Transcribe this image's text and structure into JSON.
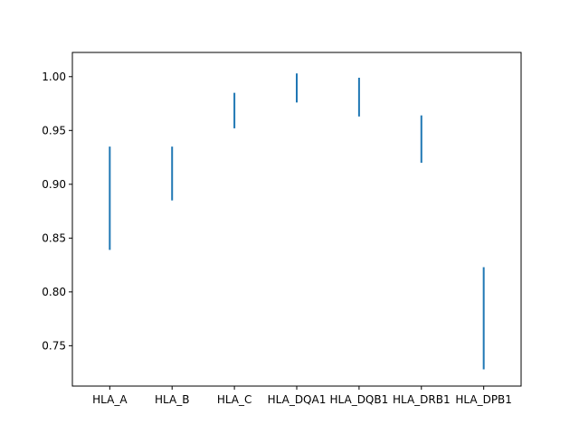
{
  "chart_data": {
    "type": "range",
    "title": "",
    "xlabel": "",
    "ylabel": "",
    "categories": [
      "HLA_A",
      "HLA_B",
      "HLA_C",
      "HLA_DQA1",
      "HLA_DQB1",
      "HLA_DRB1",
      "HLA_DPB1"
    ],
    "series": [
      {
        "color": "#1f77b4",
        "lows": [
          0.839,
          0.885,
          0.952,
          0.976,
          0.963,
          0.92,
          0.728
        ],
        "highs": [
          0.935,
          0.935,
          0.985,
          1.003,
          0.999,
          0.964,
          0.823
        ]
      }
    ],
    "ylim": [
      0.7125,
      1.0225
    ],
    "yticks": [
      0.75,
      0.8,
      0.85,
      0.9,
      0.95,
      1.0
    ],
    "ytick_labels": [
      "0.75",
      "0.80",
      "0.85",
      "0.90",
      "0.95",
      "1.00"
    ],
    "grid": false,
    "legend": "none"
  }
}
